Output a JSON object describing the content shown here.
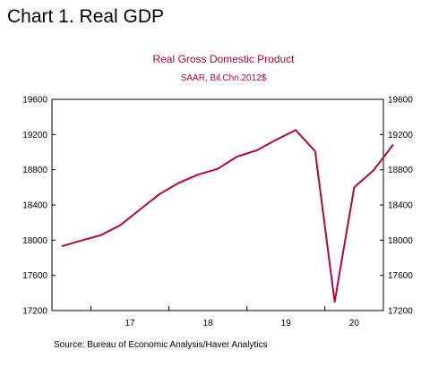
{
  "page_heading": "Chart 1.  Real GDP",
  "source_note": "Source:  Bureau of Economic Analysis/Haver Analytics",
  "colors": {
    "series": "#b0063a",
    "title": "#b0063a",
    "axis": "#000000"
  },
  "chart_data": {
    "type": "line",
    "title": "Real Gross Domestic Product",
    "subtitle": "SAAR, Bil.Chn.2012$",
    "xlabel": "",
    "ylabel": "",
    "ylim": [
      17200,
      19600
    ],
    "yticks": [
      17200,
      17600,
      18000,
      18400,
      18800,
      19200,
      19600
    ],
    "xlim": [
      2016.5,
      2020.75
    ],
    "xtick_labels": [
      {
        "label": "17",
        "year": 2017
      },
      {
        "label": "18",
        "year": 2018
      },
      {
        "label": "19",
        "year": 2019
      },
      {
        "label": "20",
        "year": 2020
      }
    ],
    "grid": false,
    "legend": "none",
    "series": [
      {
        "name": "",
        "x": [
          "2016Q3",
          "2016Q4",
          "2017Q1",
          "2017Q2",
          "2017Q3",
          "2017Q4",
          "2018Q1",
          "2018Q2",
          "2018Q3",
          "2018Q4",
          "2019Q1",
          "2019Q2",
          "2019Q3",
          "2019Q4",
          "2020Q1",
          "2020Q2",
          "2020Q3",
          "2020Q4"
        ],
        "values": [
          17930,
          17995,
          18055,
          18170,
          18345,
          18520,
          18650,
          18745,
          18810,
          18950,
          19020,
          19140,
          19250,
          19010,
          17300,
          18600,
          18795,
          19085
        ]
      }
    ]
  }
}
